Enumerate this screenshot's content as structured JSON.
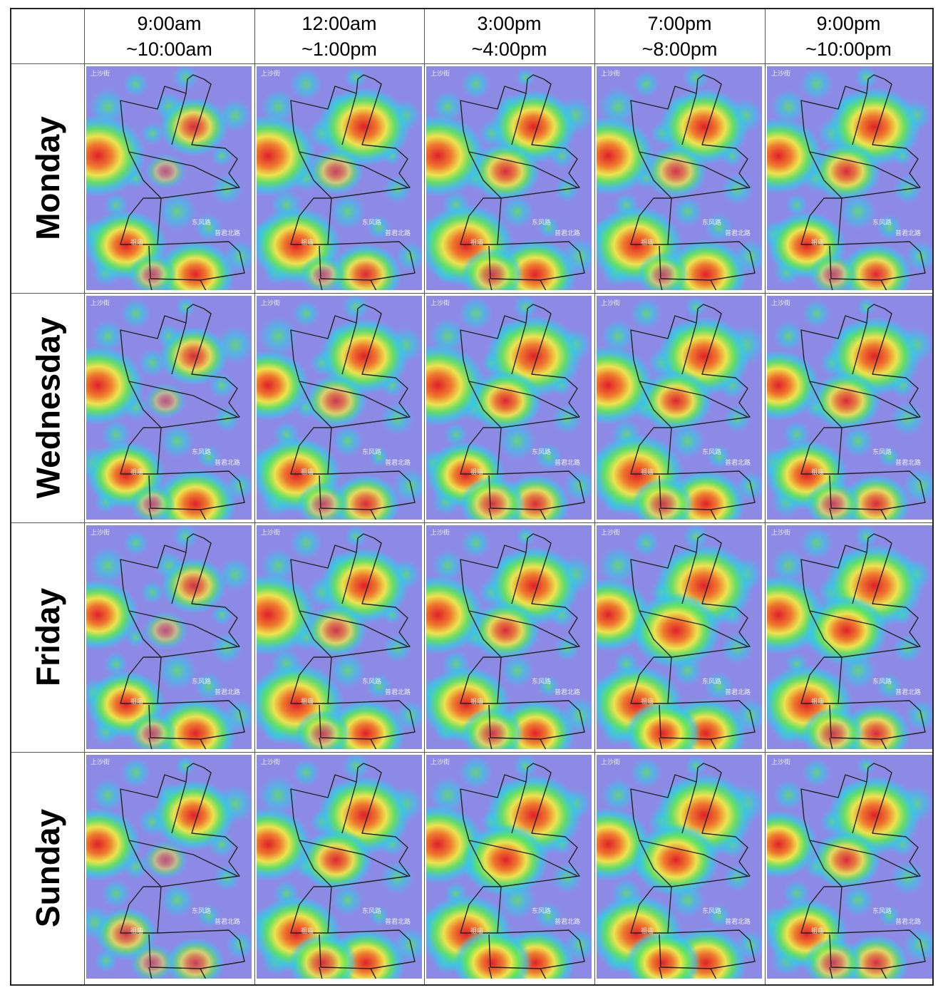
{
  "header": {
    "time_slots": [
      {
        "line1": "9:00am",
        "line2": "~10:00am"
      },
      {
        "line1": "12:00am",
        "line2": "~1:00pm"
      },
      {
        "line1": "3:00pm",
        "line2": "~4:00pm"
      },
      {
        "line1": "7:00pm",
        "line2": "~8:00pm"
      },
      {
        "line1": "9:00pm",
        "line2": "~10:00pm"
      }
    ]
  },
  "days": [
    "Monday",
    "Wednesday",
    "Friday",
    "Sunday"
  ],
  "map_labels": {
    "top_left_street": "上沙街",
    "east_road": "东风路",
    "north_road": "普君北路",
    "station": "祖庙"
  },
  "chart_data": {
    "type": "heatmap",
    "layout": "grid of map heatmaps, rows = days, columns = time slots",
    "rows": [
      "Monday",
      "Wednesday",
      "Friday",
      "Sunday"
    ],
    "columns": [
      "9:00am ~10:00am",
      "12:00am ~1:00pm",
      "3:00pm ~4:00pm",
      "7:00pm ~8:00pm",
      "9:00pm ~10:00pm"
    ],
    "colormap": [
      "#7a72e0",
      "#35c9e6",
      "#5fe65a",
      "#f1e845",
      "#ef7a2e",
      "#e0202a"
    ],
    "background_color": "#8d8ae6",
    "boundary_color": "#222222",
    "hotspots_note": "relative intensity 0-1 of each hotspot per panel",
    "hotspot_sites": [
      "north-east block",
      "west edge",
      "south-west station",
      "south",
      "central",
      "south-center"
    ],
    "intensity": {
      "Monday": [
        [
          0.55,
          0.95,
          0.75,
          0.7,
          0.15,
          0.25
        ],
        [
          0.9,
          0.95,
          0.85,
          0.6,
          0.35,
          0.2
        ],
        [
          0.8,
          0.95,
          0.95,
          0.75,
          0.55,
          0.45
        ],
        [
          0.85,
          0.9,
          0.9,
          0.75,
          0.45,
          0.3
        ],
        [
          0.9,
          0.85,
          0.7,
          0.6,
          0.55,
          0.25
        ]
      ],
      "Wednesday": [
        [
          0.55,
          0.9,
          0.7,
          0.75,
          0.15,
          0.2
        ],
        [
          0.85,
          0.75,
          0.85,
          0.55,
          0.45,
          0.3
        ],
        [
          0.95,
          0.95,
          0.7,
          0.55,
          0.6,
          0.5
        ],
        [
          0.9,
          0.9,
          0.95,
          0.7,
          0.6,
          0.45
        ],
        [
          0.9,
          0.75,
          0.75,
          0.55,
          0.55,
          0.35
        ]
      ],
      "Friday": [
        [
          0.5,
          0.75,
          0.7,
          0.75,
          0.2,
          0.25
        ],
        [
          0.85,
          0.95,
          0.95,
          0.7,
          0.45,
          0.35
        ],
        [
          0.9,
          0.9,
          0.85,
          0.7,
          0.55,
          0.45
        ],
        [
          0.98,
          0.8,
          0.9,
          0.75,
          0.85,
          0.65
        ],
        [
          0.98,
          0.9,
          0.9,
          0.55,
          0.75,
          0.45
        ]
      ],
      "Sunday": [
        [
          0.75,
          0.8,
          0.45,
          0.4,
          0.2,
          0.2
        ],
        [
          0.9,
          0.8,
          0.85,
          0.7,
          0.6,
          0.55
        ],
        [
          0.95,
          0.9,
          0.9,
          0.7,
          0.8,
          0.7
        ],
        [
          0.98,
          0.8,
          0.9,
          0.75,
          0.8,
          0.65
        ],
        [
          0.9,
          0.7,
          0.75,
          0.5,
          0.55,
          0.4
        ]
      ]
    }
  }
}
